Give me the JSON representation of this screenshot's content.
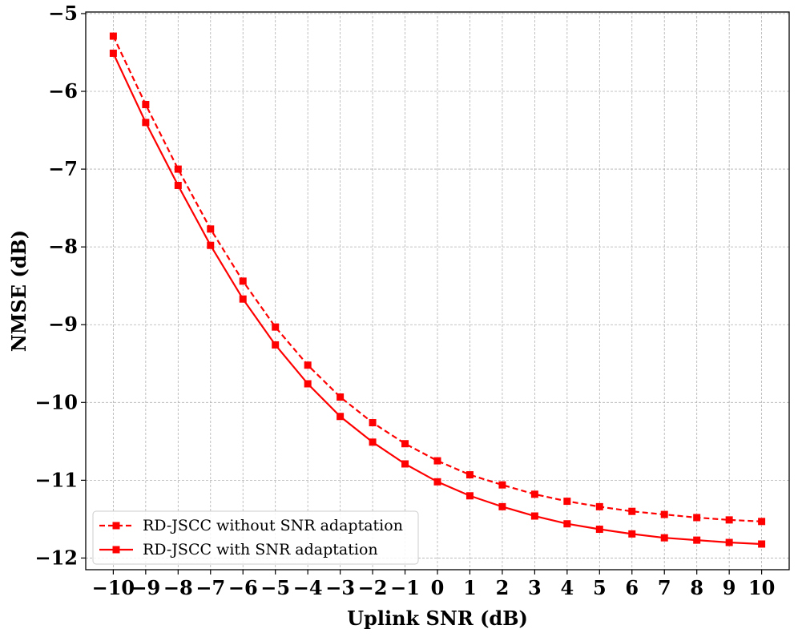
{
  "chart_data": {
    "type": "line",
    "title": "",
    "xlabel": "Uplink SNR (dB)",
    "ylabel": "NMSE (dB)",
    "xlim": [
      -10.85,
      10.85
    ],
    "ylim": [
      -12.15,
      -4.98
    ],
    "xticks": [
      -10,
      -9,
      -8,
      -7,
      -6,
      -5,
      -4,
      -3,
      -2,
      -1,
      0,
      1,
      2,
      3,
      4,
      5,
      6,
      7,
      8,
      9,
      10
    ],
    "xtick_labels": [
      "−10",
      "−9",
      "−8",
      "−7",
      "−6",
      "−5",
      "−4",
      "−3",
      "−2",
      "−1",
      "0",
      "1",
      "2",
      "3",
      "4",
      "5",
      "6",
      "7",
      "8",
      "9",
      "10"
    ],
    "yticks": [
      -12,
      -11,
      -10,
      -9,
      -8,
      -7,
      -6,
      -5
    ],
    "ytick_labels": [
      "−12",
      "−11",
      "−10",
      "−9",
      "−8",
      "−7",
      "−6",
      "−5"
    ],
    "grid": true,
    "legend_position": "lower-left",
    "x": [
      -10,
      -9,
      -8,
      -7,
      -6,
      -5,
      -4,
      -3,
      -2,
      -1,
      0,
      1,
      2,
      3,
      4,
      5,
      6,
      7,
      8,
      9,
      10
    ],
    "series": [
      {
        "name": "RD-JSCC without SNR adaptation",
        "color": "#ff0000",
        "line_style": "dashed",
        "marker": "square",
        "values": [
          -5.29,
          -6.17,
          -7.0,
          -7.77,
          -8.44,
          -9.03,
          -9.52,
          -9.93,
          -10.26,
          -10.53,
          -10.75,
          -10.93,
          -11.06,
          -11.18,
          -11.27,
          -11.34,
          -11.4,
          -11.44,
          -11.48,
          -11.51,
          -11.53
        ]
      },
      {
        "name": "RD-JSCC with SNR adaptation",
        "color": "#ff0000",
        "line_style": "solid",
        "marker": "square",
        "values": [
          -5.51,
          -6.4,
          -7.21,
          -7.98,
          -8.67,
          -9.26,
          -9.76,
          -10.18,
          -10.51,
          -10.79,
          -11.02,
          -11.2,
          -11.34,
          -11.46,
          -11.56,
          -11.63,
          -11.69,
          -11.74,
          -11.77,
          -11.8,
          -11.82
        ]
      }
    ]
  }
}
